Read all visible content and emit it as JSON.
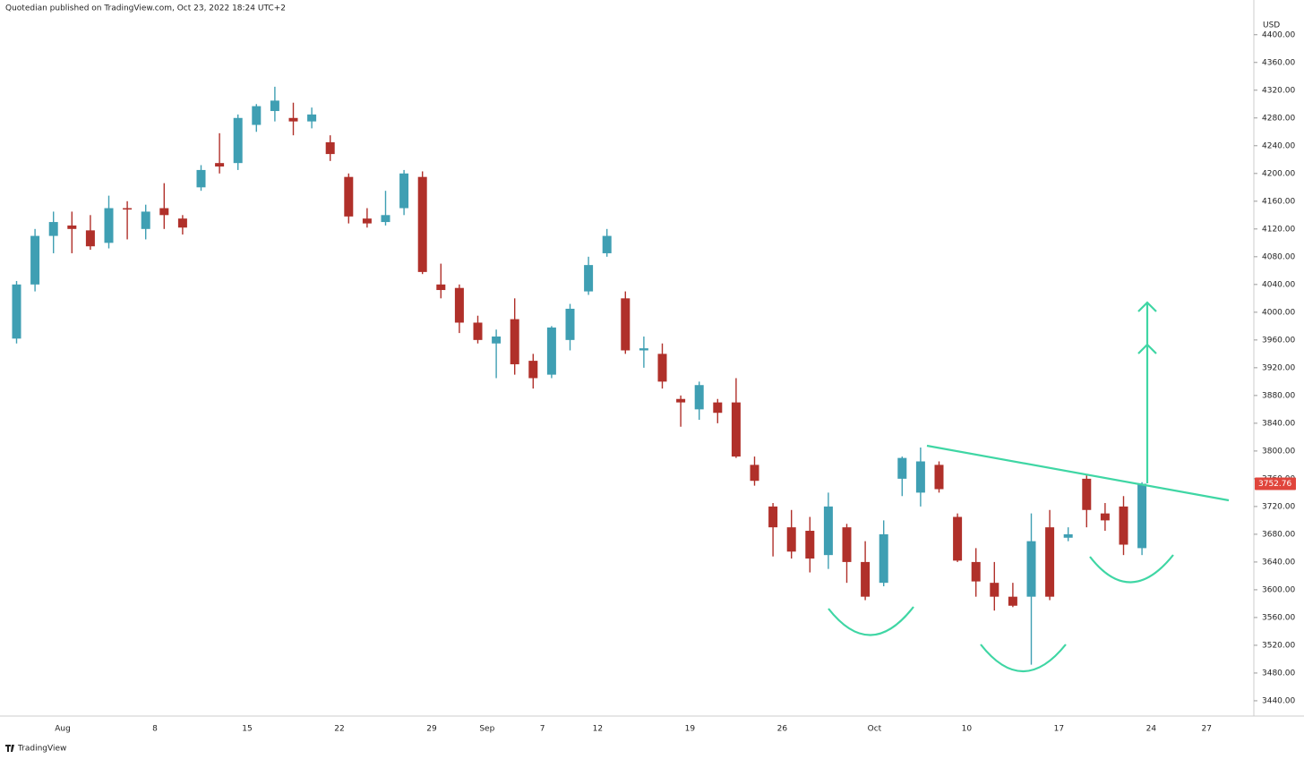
{
  "chart_data": {
    "type": "candlestick",
    "title": "Quotedian published on TradingView.com, Oct 23, 2022 18:24 UTC+2",
    "currency": "USD",
    "footer": "TradingView",
    "categories": [
      null,
      null,
      null,
      "Aug",
      null,
      null,
      null,
      null,
      "8",
      null,
      null,
      null,
      null,
      "15",
      null,
      null,
      null,
      null,
      "22",
      null,
      null,
      null,
      null,
      "29",
      null,
      null,
      "Sep",
      null,
      null,
      "7",
      null,
      null,
      "12",
      null,
      null,
      null,
      null,
      "19",
      null,
      null,
      null,
      null,
      "26",
      null,
      null,
      null,
      null,
      "Oct",
      null,
      null,
      null,
      null,
      "10",
      null,
      null,
      null,
      null,
      "17",
      null,
      null,
      null,
      null,
      "24",
      null,
      null,
      "27"
    ],
    "open": [
      3962,
      4040,
      4110,
      4125,
      4118,
      4100,
      4150,
      4120,
      4150,
      4135,
      4180,
      4215,
      4215,
      4270,
      4290,
      4280,
      4275,
      4245,
      4195,
      4135,
      4130,
      4150,
      4195,
      4040,
      4035,
      3985,
      3955,
      3990,
      3930,
      3910,
      3960,
      4030,
      4085,
      4020,
      3945,
      3940,
      3875,
      3860,
      3870,
      3870,
      3780,
      3720,
      3690,
      3685,
      3650,
      3690,
      3640,
      3610,
      3760,
      3740,
      3780,
      3705,
      3640,
      3610,
      3590,
      3590,
      3690,
      3675,
      3760,
      3710,
      3720,
      3660,
      null,
      null,
      null,
      null
    ],
    "high": [
      4045,
      4120,
      4145,
      4145,
      4140,
      4168,
      4160,
      4155,
      4186,
      4140,
      4212,
      4258,
      4285,
      4300,
      4325,
      4302,
      4295,
      4255,
      4200,
      4150,
      4175,
      4205,
      4203,
      4070,
      4040,
      3995,
      3975,
      4020,
      3940,
      3980,
      4012,
      4080,
      4120,
      4030,
      3965,
      3955,
      3880,
      3900,
      3875,
      3905,
      3792,
      3725,
      3715,
      3705,
      3740,
      3695,
      3670,
      3700,
      3792,
      3805,
      3785,
      3710,
      3660,
      3640,
      3610,
      3710,
      3715,
      3690,
      3765,
      3725,
      3735,
      3755,
      null,
      null,
      null,
      null
    ],
    "low": [
      3955,
      4030,
      4085,
      4085,
      4090,
      4092,
      4105,
      4105,
      4120,
      4112,
      4175,
      4200,
      4205,
      4260,
      4275,
      4255,
      4265,
      4218,
      4128,
      4122,
      4125,
      4140,
      4055,
      4020,
      3970,
      3955,
      3905,
      3910,
      3890,
      3905,
      3945,
      4025,
      4080,
      3940,
      3920,
      3890,
      3835,
      3845,
      3840,
      3790,
      3750,
      3648,
      3645,
      3625,
      3630,
      3610,
      3585,
      3605,
      3735,
      3720,
      3740,
      3640,
      3590,
      3570,
      3575,
      3492,
      3585,
      3670,
      3690,
      3685,
      3650,
      3650,
      null,
      null,
      null,
      null
    ],
    "close": [
      4040,
      4110,
      4130,
      4120,
      4095,
      4150,
      4148,
      4145,
      4140,
      4122,
      4205,
      4210,
      4280,
      4297,
      4305,
      4275,
      4285,
      4228,
      4138,
      4128,
      4140,
      4200,
      4058,
      4032,
      3985,
      3960,
      3965,
      3925,
      3905,
      3978,
      4005,
      4068,
      4110,
      3945,
      3948,
      3900,
      3870,
      3895,
      3855,
      3792,
      3757,
      3690,
      3655,
      3645,
      3720,
      3640,
      3590,
      3680,
      3790,
      3785,
      3745,
      3642,
      3612,
      3590,
      3577,
      3670,
      3590,
      3680,
      3715,
      3700,
      3665,
      3752.76,
      null,
      null,
      null,
      null
    ],
    "up_color": "#3f9fb3",
    "down_color": "#b0302a",
    "last_price_color": "#e0453c",
    "ylim": [
      3418,
      4450
    ],
    "yticks": [
      {
        "value": 4400,
        "label": "4400.00"
      },
      {
        "value": 4360,
        "label": "4360.00"
      },
      {
        "value": 4320,
        "label": "4320.00"
      },
      {
        "value": 4280,
        "label": "4280.00"
      },
      {
        "value": 4240,
        "label": "4240.00"
      },
      {
        "value": 4200,
        "label": "4200.00"
      },
      {
        "value": 4160,
        "label": "4160.00"
      },
      {
        "value": 4120,
        "label": "4120.00"
      },
      {
        "value": 4080,
        "label": "4080.00"
      },
      {
        "value": 4040,
        "label": "4040.00"
      },
      {
        "value": 4000,
        "label": "4000.00"
      },
      {
        "value": 3960,
        "label": "3960.00"
      },
      {
        "value": 3920,
        "label": "3920.00"
      },
      {
        "value": 3880,
        "label": "3880.00"
      },
      {
        "value": 3840,
        "label": "3840.00"
      },
      {
        "value": 3800,
        "label": "3800.00"
      },
      {
        "value": 3760,
        "label": "3760.00"
      },
      {
        "value": 3720,
        "label": "3720.00"
      },
      {
        "value": 3680,
        "label": "3680.00"
      },
      {
        "value": 3640,
        "label": "3640.00"
      },
      {
        "value": 3600,
        "label": "3600.00"
      },
      {
        "value": 3560,
        "label": "3560.00"
      },
      {
        "value": 3520,
        "label": "3520.00"
      },
      {
        "value": 3480,
        "label": "3480.00"
      },
      {
        "value": 3440,
        "label": "3440.00"
      }
    ]
  }
}
